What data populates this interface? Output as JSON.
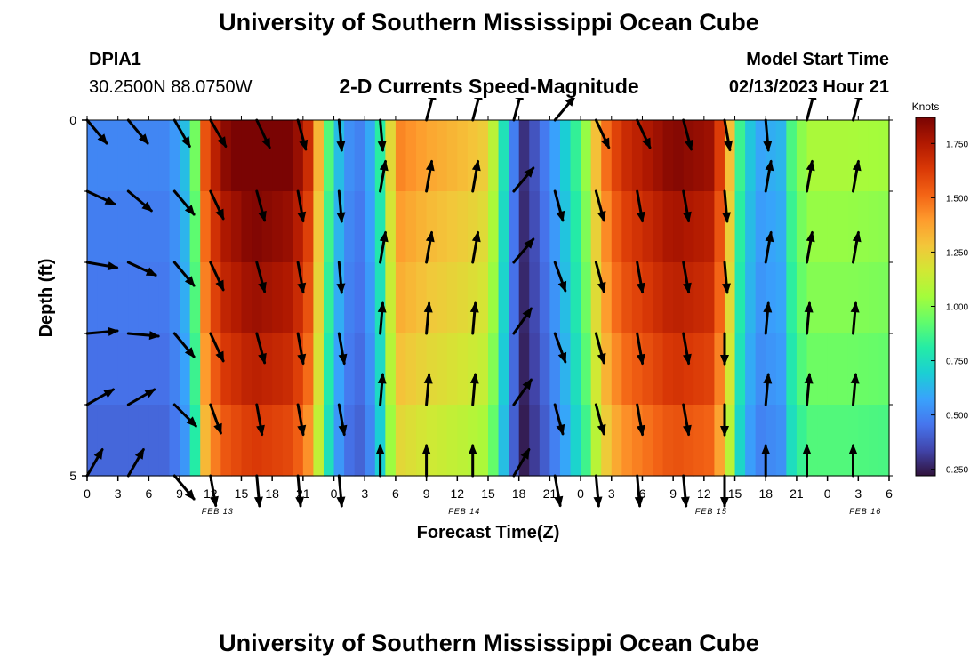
{
  "page": {
    "title": "University of Southern Mississippi Ocean Cube",
    "station_id": "DPIA1",
    "station_coords": "30.2500N  88.0750W",
    "subtitle": "2-D Currents Speed-Magnitude",
    "model_start_label": "Model Start Time",
    "model_start_value": "02/13/2023 Hour 21",
    "footer_title": "University of Southern Mississippi Ocean Cube"
  },
  "chart_data": {
    "type": "heatmap",
    "title": "2-D Currents Speed-Magnitude",
    "xlabel": "Forecast Time(Z)",
    "ylabel": "Depth (ft)",
    "x_start_hour": 0,
    "x_end_hour": 78,
    "x_ticks": [
      {
        "hour": 0,
        "label": "0"
      },
      {
        "hour": 3,
        "label": "3"
      },
      {
        "hour": 6,
        "label": "6"
      },
      {
        "hour": 9,
        "label": "9"
      },
      {
        "hour": 12,
        "label": "12"
      },
      {
        "hour": 15,
        "label": "15"
      },
      {
        "hour": 18,
        "label": "18"
      },
      {
        "hour": 21,
        "label": "21"
      },
      {
        "hour": 24,
        "label": "0"
      },
      {
        "hour": 27,
        "label": "3"
      },
      {
        "hour": 30,
        "label": "6"
      },
      {
        "hour": 33,
        "label": "9"
      },
      {
        "hour": 36,
        "label": "12"
      },
      {
        "hour": 39,
        "label": "15"
      },
      {
        "hour": 42,
        "label": "18"
      },
      {
        "hour": 45,
        "label": "21"
      },
      {
        "hour": 48,
        "label": "0"
      },
      {
        "hour": 51,
        "label": "3"
      },
      {
        "hour": 54,
        "label": "6"
      },
      {
        "hour": 57,
        "label": "9"
      },
      {
        "hour": 60,
        "label": "12"
      },
      {
        "hour": 63,
        "label": "15"
      },
      {
        "hour": 66,
        "label": "18"
      },
      {
        "hour": 69,
        "label": "21"
      },
      {
        "hour": 72,
        "label": "0"
      },
      {
        "hour": 75,
        "label": "3"
      },
      {
        "hour": 78,
        "label": "6"
      }
    ],
    "date_labels": [
      {
        "hour": 12,
        "label": "FEB 13"
      },
      {
        "hour": 36,
        "label": "FEB 14"
      },
      {
        "hour": 60,
        "label": "FEB 15"
      },
      {
        "hour": 75,
        "label": "FEB 16"
      }
    ],
    "y_ticks": [
      {
        "depth": 0,
        "label": "0"
      },
      {
        "depth": 5,
        "label": "5"
      }
    ],
    "ylim": [
      0,
      5
    ],
    "depth_levels": 5,
    "colorbar": {
      "label": "Knots",
      "vmin": 0.22,
      "vmax": 1.87,
      "ticks": [
        "1.750",
        "1.500",
        "1.250",
        "1.000",
        "0.750",
        "0.500",
        "0.250"
      ],
      "tick_values": [
        1.75,
        1.5,
        1.25,
        1.0,
        0.75,
        0.5,
        0.25
      ],
      "colors": [
        "#30123b",
        "#4145ab",
        "#4675ed",
        "#39a2fc",
        "#1bcfd4",
        "#24eca6",
        "#61fc6c",
        "#a4fc3b",
        "#d1e834",
        "#f3c63a",
        "#fe9b2d",
        "#f36315",
        "#d93806",
        "#b11901",
        "#7a0403"
      ]
    },
    "speed_profile": [
      {
        "hour": 0,
        "speed": 0.48
      },
      {
        "hour": 8,
        "speed": 0.48
      },
      {
        "hour": 9.5,
        "speed": 0.62
      },
      {
        "hour": 10.5,
        "speed": 0.92
      },
      {
        "hour": 11.5,
        "speed": 1.5
      },
      {
        "hour": 13,
        "speed": 1.74
      },
      {
        "hour": 16,
        "speed": 1.86
      },
      {
        "hour": 20,
        "speed": 1.8
      },
      {
        "hour": 22,
        "speed": 1.55
      },
      {
        "hour": 23,
        "speed": 1.0
      },
      {
        "hour": 24,
        "speed": 0.72
      },
      {
        "hour": 25,
        "speed": 0.52
      },
      {
        "hour": 26.5,
        "speed": 0.47
      },
      {
        "hour": 28,
        "speed": 0.62
      },
      {
        "hour": 29,
        "speed": 0.95
      },
      {
        "hour": 30,
        "speed": 1.4
      },
      {
        "hour": 33,
        "speed": 1.32
      },
      {
        "hour": 37,
        "speed": 1.25
      },
      {
        "hour": 39,
        "speed": 1.2
      },
      {
        "hour": 40,
        "speed": 0.92
      },
      {
        "hour": 41,
        "speed": 0.55
      },
      {
        "hour": 42.5,
        "speed": 0.28
      },
      {
        "hour": 44,
        "speed": 0.4
      },
      {
        "hour": 45.5,
        "speed": 0.55
      },
      {
        "hour": 47,
        "speed": 0.72
      },
      {
        "hour": 48.5,
        "speed": 0.98
      },
      {
        "hour": 50,
        "speed": 1.38
      },
      {
        "hour": 52,
        "speed": 1.6
      },
      {
        "hour": 57,
        "speed": 1.78
      },
      {
        "hour": 61,
        "speed": 1.72
      },
      {
        "hour": 62.5,
        "speed": 1.25
      },
      {
        "hour": 63.5,
        "speed": 0.82
      },
      {
        "hour": 65,
        "speed": 0.55
      },
      {
        "hour": 67.5,
        "speed": 0.6
      },
      {
        "hour": 68.5,
        "speed": 0.85
      },
      {
        "hour": 70,
        "speed": 1.02
      },
      {
        "hour": 74,
        "speed": 1.02
      },
      {
        "hour": 78,
        "speed": 1.0
      }
    ],
    "depth_factors": [
      1.04,
      1.0,
      0.97,
      0.93,
      0.88
    ],
    "arrow_hours": [
      0,
      4,
      8.5,
      12,
      16.5,
      20.5,
      24.5,
      28.5,
      33,
      37.5,
      41.5,
      45.5,
      49.5,
      53.5,
      58,
      62,
      66,
      70,
      74.5
    ],
    "arrow_depths": [
      0,
      1,
      2,
      3,
      4,
      5
    ],
    "arrow_directions_deg": [
      [
        140,
        140,
        150,
        150,
        155,
        165,
        175,
        175,
        15,
        15,
        15,
        40,
        155,
        155,
        165,
        170,
        175,
        15,
        15
      ],
      [
        115,
        130,
        140,
        155,
        165,
        170,
        175,
        10,
        10,
        10,
        40,
        165,
        165,
        170,
        170,
        175,
        10,
        10,
        10
      ],
      [
        100,
        115,
        140,
        155,
        165,
        170,
        175,
        10,
        10,
        10,
        40,
        160,
        165,
        170,
        170,
        175,
        10,
        10,
        10
      ],
      [
        85,
        95,
        140,
        155,
        165,
        170,
        170,
        5,
        5,
        5,
        35,
        160,
        165,
        170,
        170,
        180,
        5,
        5,
        5
      ],
      [
        60,
        60,
        135,
        160,
        170,
        170,
        170,
        5,
        5,
        5,
        35,
        165,
        165,
        170,
        170,
        180,
        5,
        5,
        5
      ],
      [
        30,
        30,
        140,
        170,
        175,
        175,
        175,
        0,
        0,
        0,
        30,
        170,
        175,
        175,
        175,
        180,
        0,
        0,
        0
      ]
    ]
  }
}
